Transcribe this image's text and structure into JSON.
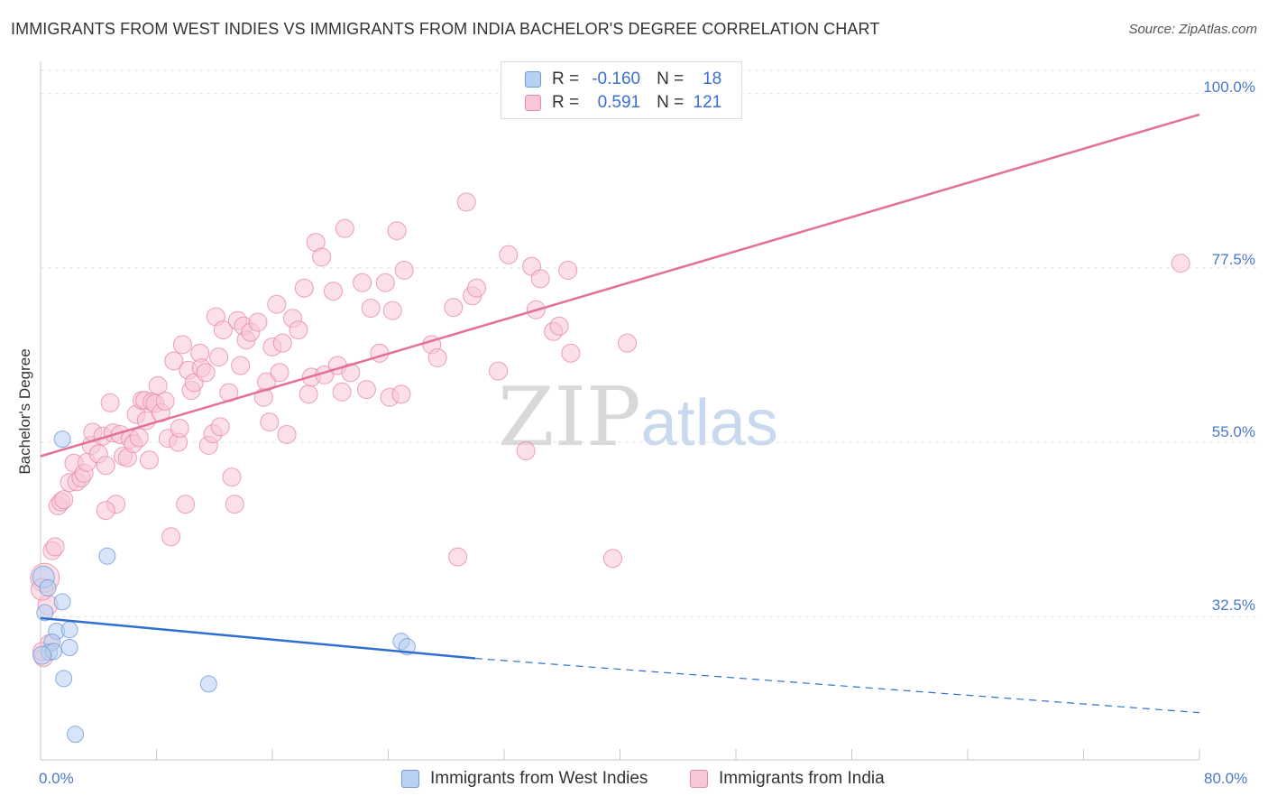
{
  "title": "IMMIGRANTS FROM WEST INDIES VS IMMIGRANTS FROM INDIA BACHELOR'S DEGREE CORRELATION CHART",
  "source": "Source: ZipAtlas.com",
  "watermark": {
    "zip": "ZIP",
    "atlas": "atlas"
  },
  "legend": {
    "r_label": "R =",
    "n_label": "N =",
    "west_indies": {
      "r": "-0.160",
      "n": "18"
    },
    "india": {
      "r": "0.591",
      "n": "121"
    }
  },
  "colors": {
    "west_indies_fill": "#b8d0f2",
    "west_indies_stroke": "#6f9ad6",
    "west_indies_line": "#2f6fd0",
    "india_fill": "#f8c6d6",
    "india_stroke": "#e88aa8",
    "india_line": "#e3709a",
    "axis_label": "#4a78c8",
    "grid": "#e2e2e2"
  },
  "chart_data": {
    "type": "scatter",
    "title": "IMMIGRANTS FROM WEST INDIES VS IMMIGRANTS FROM INDIA BACHELOR'S DEGREE CORRELATION CHART",
    "xlabel": "",
    "ylabel": "Bachelor's Degree",
    "xlim": [
      0,
      80
    ],
    "ylim": [
      14,
      103
    ],
    "x_tick_labels": [
      "0.0%",
      "80.0%"
    ],
    "y_ticks": [
      32.5,
      55.0,
      77.5,
      100.0
    ],
    "y_tick_labels": [
      "32.5%",
      "55.0%",
      "77.5%",
      "100.0%"
    ],
    "grid": true,
    "legend_position": "top-center",
    "series": [
      {
        "name": "Immigrants from West Indies",
        "r": -0.16,
        "n": 18,
        "trend": {
          "x0": 0,
          "y0": 32.3,
          "x1": 30,
          "y1": 27.1,
          "dash_to_x": 80,
          "dash_to_y": 20.1
        },
        "points": [
          [
            1.5,
            55.4
          ],
          [
            4.6,
            40.3
          ],
          [
            0.2,
            37.6
          ],
          [
            0.5,
            36.2
          ],
          [
            1.5,
            34.4
          ],
          [
            0.3,
            33.0
          ],
          [
            1.1,
            30.6
          ],
          [
            2.0,
            30.8
          ],
          [
            0.8,
            29.2
          ],
          [
            0.6,
            27.9
          ],
          [
            0.9,
            28.0
          ],
          [
            2.0,
            28.5
          ],
          [
            1.6,
            24.5
          ],
          [
            24.9,
            29.3
          ],
          [
            25.3,
            28.6
          ],
          [
            11.6,
            23.8
          ],
          [
            2.4,
            17.3
          ],
          [
            0.1,
            27.5
          ]
        ],
        "sizes": [
          9,
          9,
          12,
          9,
          9,
          9,
          9,
          9,
          9,
          9,
          9,
          9,
          9,
          9,
          9,
          9,
          9,
          10
        ]
      },
      {
        "name": "Immigrants from India",
        "r": 0.591,
        "n": 121,
        "trend": {
          "x0": 0,
          "y0": 53.2,
          "x1": 80,
          "y1": 97.3
        },
        "points": [
          [
            0.3,
            37.5
          ],
          [
            0.5,
            34.0
          ],
          [
            0.8,
            41.0
          ],
          [
            1.0,
            41.5
          ],
          [
            1.2,
            46.8
          ],
          [
            1.4,
            47.3
          ],
          [
            1.6,
            47.6
          ],
          [
            2.0,
            49.8
          ],
          [
            2.3,
            52.3
          ],
          [
            2.5,
            49.9
          ],
          [
            2.8,
            50.4
          ],
          [
            3.0,
            51.0
          ],
          [
            3.2,
            52.4
          ],
          [
            3.5,
            54.6
          ],
          [
            3.6,
            56.3
          ],
          [
            4.0,
            53.5
          ],
          [
            4.3,
            55.8
          ],
          [
            4.5,
            52.0
          ],
          [
            4.8,
            60.1
          ],
          [
            5.0,
            56.2
          ],
          [
            5.2,
            47.0
          ],
          [
            5.5,
            56.0
          ],
          [
            5.7,
            53.2
          ],
          [
            6.0,
            53.0
          ],
          [
            6.2,
            55.4
          ],
          [
            6.4,
            54.8
          ],
          [
            6.6,
            58.6
          ],
          [
            6.8,
            55.6
          ],
          [
            7.0,
            60.4
          ],
          [
            7.2,
            60.4
          ],
          [
            7.3,
            57.8
          ],
          [
            7.5,
            52.7
          ],
          [
            7.7,
            60.2
          ],
          [
            7.9,
            60.0
          ],
          [
            8.1,
            62.3
          ],
          [
            8.3,
            58.8
          ],
          [
            8.6,
            60.3
          ],
          [
            8.8,
            55.5
          ],
          [
            9.0,
            42.8
          ],
          [
            9.2,
            65.5
          ],
          [
            9.5,
            55.0
          ],
          [
            9.6,
            56.8
          ],
          [
            9.8,
            67.6
          ],
          [
            10.0,
            47.0
          ],
          [
            10.2,
            64.3
          ],
          [
            10.4,
            61.7
          ],
          [
            10.6,
            62.7
          ],
          [
            11.0,
            66.5
          ],
          [
            11.1,
            64.6
          ],
          [
            11.4,
            64.0
          ],
          [
            11.6,
            54.6
          ],
          [
            11.9,
            56.1
          ],
          [
            12.1,
            71.2
          ],
          [
            12.3,
            66.0
          ],
          [
            12.4,
            57.0
          ],
          [
            12.6,
            69.5
          ],
          [
            13.0,
            61.4
          ],
          [
            13.2,
            50.5
          ],
          [
            13.4,
            47.0
          ],
          [
            13.6,
            70.7
          ],
          [
            13.8,
            64.9
          ],
          [
            14.0,
            70.0
          ],
          [
            14.2,
            68.2
          ],
          [
            14.5,
            69.2
          ],
          [
            15.0,
            70.5
          ],
          [
            15.4,
            60.8
          ],
          [
            15.6,
            62.8
          ],
          [
            15.8,
            57.6
          ],
          [
            16.0,
            67.3
          ],
          [
            16.3,
            72.8
          ],
          [
            16.5,
            64.0
          ],
          [
            16.7,
            67.8
          ],
          [
            17.0,
            56.0
          ],
          [
            17.4,
            71.0
          ],
          [
            17.8,
            69.5
          ],
          [
            18.2,
            74.9
          ],
          [
            18.5,
            61.2
          ],
          [
            18.7,
            63.4
          ],
          [
            19.0,
            80.8
          ],
          [
            19.4,
            78.9
          ],
          [
            19.6,
            63.7
          ],
          [
            20.2,
            74.5
          ],
          [
            20.5,
            64.9
          ],
          [
            20.8,
            61.5
          ],
          [
            21.0,
            82.6
          ],
          [
            21.4,
            64.0
          ],
          [
            22.2,
            75.6
          ],
          [
            22.5,
            61.8
          ],
          [
            22.8,
            72.3
          ],
          [
            23.4,
            66.5
          ],
          [
            23.8,
            75.6
          ],
          [
            24.1,
            60.8
          ],
          [
            24.3,
            72.0
          ],
          [
            24.6,
            82.3
          ],
          [
            24.9,
            61.2
          ],
          [
            25.1,
            77.2
          ],
          [
            27.0,
            67.6
          ],
          [
            27.4,
            65.9
          ],
          [
            28.5,
            72.4
          ],
          [
            28.8,
            40.2
          ],
          [
            29.4,
            86.0
          ],
          [
            29.8,
            73.9
          ],
          [
            30.1,
            74.9
          ],
          [
            31.6,
            64.2
          ],
          [
            32.3,
            79.2
          ],
          [
            33.5,
            53.9
          ],
          [
            33.9,
            77.7
          ],
          [
            34.2,
            72.1
          ],
          [
            34.5,
            76.1
          ],
          [
            35.4,
            69.3
          ],
          [
            35.8,
            70.0
          ],
          [
            36.4,
            77.2
          ],
          [
            36.6,
            66.5
          ],
          [
            39.5,
            40.0
          ],
          [
            40.5,
            67.8
          ],
          [
            78.7,
            78.1
          ],
          [
            0.2,
            27.2
          ],
          [
            0.6,
            29.0
          ],
          [
            0.1,
            36.0
          ],
          [
            4.5,
            46.2
          ],
          [
            0.1,
            28.0
          ]
        ],
        "sizes": [
          16,
          11,
          10,
          10,
          10,
          10,
          10,
          10,
          10,
          10,
          10,
          10,
          10,
          10,
          10,
          10,
          10,
          10,
          10,
          10,
          10,
          10,
          10,
          10,
          10,
          10,
          10,
          10,
          10,
          10,
          10,
          10,
          10,
          10,
          10,
          10,
          10,
          10,
          10,
          10,
          10,
          10,
          10,
          10,
          10,
          10,
          10,
          10,
          10,
          10,
          10,
          10,
          10,
          10,
          10,
          10,
          10,
          10,
          10,
          10,
          10,
          10,
          10,
          10,
          10,
          10,
          10,
          10,
          10,
          10,
          10,
          10,
          10,
          10,
          10,
          10,
          10,
          10,
          10,
          10,
          10,
          10,
          10,
          10,
          10,
          10,
          10,
          10,
          10,
          10,
          10,
          10,
          10,
          10,
          10,
          10,
          10,
          10,
          10,
          10,
          10,
          10,
          10,
          10,
          10,
          10,
          10,
          10,
          10,
          10,
          10,
          10,
          10,
          10,
          10,
          10,
          10,
          10,
          12,
          10,
          10
        ]
      }
    ]
  }
}
